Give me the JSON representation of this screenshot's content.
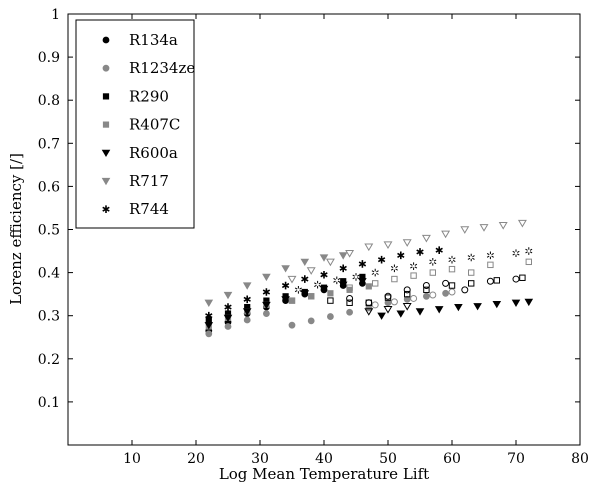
{
  "chart_data": {
    "type": "scatter",
    "xlabel": "Log Mean Temperature Lift",
    "ylabel": "Lorenz efficiency [/]",
    "xlim": [
      0,
      80
    ],
    "ylim": [
      0,
      1
    ],
    "xticks": [
      10,
      20,
      30,
      40,
      50,
      60,
      70,
      80
    ],
    "yticks": [
      0.1,
      0.2,
      0.3,
      0.4,
      0.5,
      0.6,
      0.7,
      0.8,
      0.9,
      1
    ],
    "xtick_labels": [
      "10",
      "20",
      "30",
      "40",
      "50",
      "60",
      "70",
      "80"
    ],
    "ytick_labels": [
      "0.1",
      "0.2",
      "0.3",
      "0.4",
      "0.5",
      "0.6",
      "0.7",
      "0.8",
      "0.9",
      "1"
    ],
    "grid": false,
    "legend_position": "top-left",
    "series": [
      {
        "name": "R134a",
        "marker": "circle",
        "color": "#000000",
        "filled": [
          [
            22,
            0.265
          ],
          [
            25,
            0.285
          ],
          [
            28,
            0.305
          ],
          [
            31,
            0.32
          ],
          [
            34,
            0.335
          ],
          [
            37,
            0.35
          ],
          [
            40,
            0.36
          ],
          [
            43,
            0.37
          ],
          [
            46,
            0.375
          ]
        ],
        "open": [
          [
            44,
            0.34
          ],
          [
            47,
            0.33
          ],
          [
            50,
            0.345
          ],
          [
            53,
            0.36
          ],
          [
            56,
            0.37
          ],
          [
            59,
            0.375
          ],
          [
            62,
            0.36
          ],
          [
            66,
            0.38
          ],
          [
            70,
            0.385
          ]
        ]
      },
      {
        "name": "R1234ze",
        "marker": "circle",
        "color": "#888888",
        "filled": [
          [
            22,
            0.258
          ],
          [
            25,
            0.275
          ],
          [
            28,
            0.29
          ],
          [
            31,
            0.305
          ],
          [
            35,
            0.278
          ],
          [
            38,
            0.288
          ],
          [
            41,
            0.298
          ],
          [
            44,
            0.308
          ],
          [
            47,
            0.318
          ],
          [
            50,
            0.33
          ],
          [
            53,
            0.338
          ],
          [
            56,
            0.345
          ],
          [
            59,
            0.352
          ]
        ],
        "open": [
          [
            48,
            0.325
          ],
          [
            51,
            0.332
          ],
          [
            54,
            0.34
          ],
          [
            57,
            0.348
          ],
          [
            60,
            0.355
          ]
        ]
      },
      {
        "name": "R290",
        "marker": "square",
        "color": "#000000",
        "filled": [
          [
            22,
            0.29
          ],
          [
            25,
            0.305
          ],
          [
            28,
            0.32
          ],
          [
            31,
            0.335
          ],
          [
            34,
            0.345
          ],
          [
            37,
            0.355
          ],
          [
            40,
            0.365
          ],
          [
            43,
            0.38
          ],
          [
            46,
            0.39
          ]
        ],
        "open": [
          [
            41,
            0.335
          ],
          [
            44,
            0.33
          ],
          [
            47,
            0.33
          ],
          [
            50,
            0.342
          ],
          [
            53,
            0.35
          ],
          [
            56,
            0.36
          ],
          [
            60,
            0.37
          ],
          [
            63,
            0.375
          ],
          [
            67,
            0.382
          ],
          [
            71,
            0.388
          ]
        ]
      },
      {
        "name": "R407C",
        "marker": "square",
        "color": "#888888",
        "filled": [
          [
            22,
            0.275
          ],
          [
            25,
            0.295
          ],
          [
            28,
            0.31
          ],
          [
            31,
            0.325
          ],
          [
            35,
            0.335
          ],
          [
            38,
            0.345
          ],
          [
            41,
            0.352
          ],
          [
            44,
            0.36
          ],
          [
            47,
            0.368
          ]
        ],
        "open": [
          [
            35,
            0.335
          ],
          [
            38,
            0.345
          ],
          [
            44,
            0.365
          ],
          [
            48,
            0.375
          ],
          [
            51,
            0.385
          ],
          [
            54,
            0.393
          ],
          [
            57,
            0.4
          ],
          [
            60,
            0.408
          ],
          [
            63,
            0.4
          ],
          [
            66,
            0.418
          ],
          [
            72,
            0.425
          ]
        ]
      },
      {
        "name": "R600a",
        "marker": "triangle-down",
        "color": "#000000",
        "filled": [
          [
            22,
            0.278
          ],
          [
            25,
            0.295
          ],
          [
            28,
            0.31
          ],
          [
            31,
            0.325
          ],
          [
            34,
            0.338
          ],
          [
            37,
            0.352
          ],
          [
            40,
            0.362
          ],
          [
            43,
            0.372
          ],
          [
            46,
            0.38
          ],
          [
            49,
            0.3
          ],
          [
            52,
            0.305
          ],
          [
            55,
            0.31
          ],
          [
            58,
            0.315
          ],
          [
            61,
            0.32
          ],
          [
            64,
            0.322
          ],
          [
            67,
            0.327
          ],
          [
            70,
            0.33
          ],
          [
            72,
            0.332
          ]
        ],
        "open": [
          [
            47,
            0.31
          ],
          [
            50,
            0.315
          ],
          [
            53,
            0.322
          ]
        ]
      },
      {
        "name": "R717",
        "marker": "triangle-down",
        "color": "#888888",
        "filled": [
          [
            22,
            0.33
          ],
          [
            25,
            0.348
          ],
          [
            28,
            0.37
          ],
          [
            31,
            0.39
          ],
          [
            34,
            0.41
          ],
          [
            37,
            0.425
          ],
          [
            40,
            0.435
          ],
          [
            43,
            0.44
          ]
        ],
        "open": [
          [
            35,
            0.385
          ],
          [
            38,
            0.405
          ],
          [
            41,
            0.425
          ],
          [
            44,
            0.445
          ],
          [
            47,
            0.46
          ],
          [
            50,
            0.465
          ],
          [
            53,
            0.47
          ],
          [
            56,
            0.48
          ],
          [
            59,
            0.49
          ],
          [
            62,
            0.5
          ],
          [
            65,
            0.505
          ],
          [
            68,
            0.51
          ],
          [
            71,
            0.515
          ]
        ]
      },
      {
        "name": "R744",
        "marker": "star",
        "color": "#000000",
        "filled": [
          [
            22,
            0.3
          ],
          [
            25,
            0.32
          ],
          [
            28,
            0.338
          ],
          [
            31,
            0.355
          ],
          [
            34,
            0.37
          ],
          [
            37,
            0.385
          ],
          [
            40,
            0.395
          ],
          [
            43,
            0.41
          ],
          [
            46,
            0.42
          ],
          [
            49,
            0.43
          ],
          [
            52,
            0.44
          ],
          [
            55,
            0.448
          ],
          [
            58,
            0.452
          ]
        ],
        "open": [
          [
            36,
            0.36
          ],
          [
            39,
            0.372
          ],
          [
            42,
            0.382
          ],
          [
            45,
            0.39
          ],
          [
            48,
            0.4
          ],
          [
            51,
            0.41
          ],
          [
            54,
            0.415
          ],
          [
            57,
            0.425
          ],
          [
            60,
            0.43
          ],
          [
            63,
            0.435
          ],
          [
            66,
            0.44
          ],
          [
            70,
            0.445
          ],
          [
            72,
            0.45
          ]
        ]
      }
    ]
  }
}
